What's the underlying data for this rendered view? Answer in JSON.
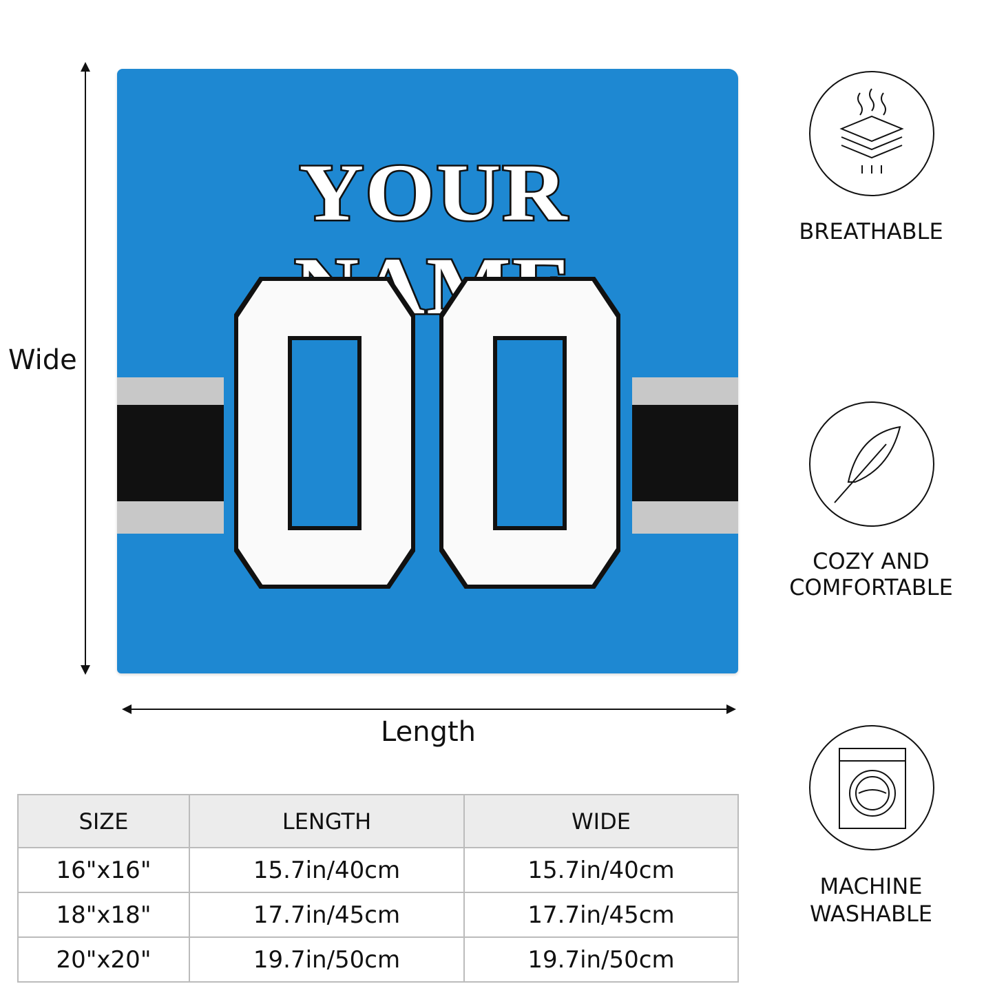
{
  "pillow": {
    "name_text": "YOUR NAME",
    "number_text": "00",
    "colors": {
      "base": "#1e88d2",
      "stripe_gray": "#c8c8c8",
      "stripe_black": "#111111",
      "number": "#fafafa"
    }
  },
  "dimensions": {
    "wide_label": "Wide",
    "length_label": "Length"
  },
  "table": {
    "headers": [
      "SIZE",
      "LENGTH",
      "WIDE"
    ],
    "rows": [
      [
        "16\"x16\"",
        "15.7in/40cm",
        "15.7in/40cm"
      ],
      [
        "18\"x18\"",
        "17.7in/45cm",
        "17.7in/45cm"
      ],
      [
        "20\"x20\"",
        "19.7in/50cm",
        "19.7in/50cm"
      ]
    ]
  },
  "features": [
    {
      "icon": "breathable-layers-icon",
      "lines": [
        "BREATHABLE"
      ]
    },
    {
      "icon": "feather-icon",
      "lines": [
        "COZY AND",
        "COMFORTABLE"
      ]
    },
    {
      "icon": "washing-machine-icon",
      "lines": [
        "MACHINE",
        "WASHABLE"
      ]
    }
  ]
}
